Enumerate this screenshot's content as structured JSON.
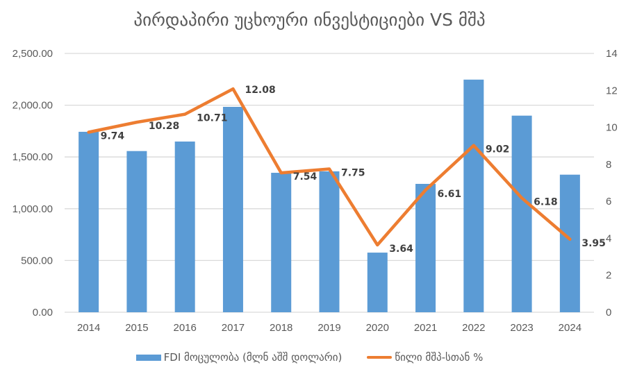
{
  "chart_data": {
    "type": "bar+line",
    "title": "პირდაპირი უცხოური ინვესტიციები VS მშპ",
    "categories": [
      "2014",
      "2015",
      "2016",
      "2017",
      "2018",
      "2019",
      "2020",
      "2021",
      "2022",
      "2023",
      "2024"
    ],
    "series": [
      {
        "name": "FDI მოცულობა (მლნ აშშ დოლარი)",
        "type": "bar",
        "axis": "left",
        "color": "#5b9bd5",
        "values": [
          1743,
          1557,
          1649,
          1984,
          1347,
          1361,
          576,
          1240,
          2247,
          1899,
          1329
        ]
      },
      {
        "name": "წილი მშპ-სთან %",
        "type": "line",
        "axis": "right",
        "color": "#ed7d31",
        "values": [
          9.74,
          10.28,
          10.71,
          12.08,
          7.54,
          7.75,
          3.64,
          6.61,
          9.02,
          6.18,
          3.95
        ],
        "labels": [
          "9.74",
          "10.28",
          "10.71",
          "12.08",
          "7.54",
          "7.75",
          "3.64",
          "6.61",
          "9.02",
          "6.18",
          "3.95"
        ]
      }
    ],
    "y_left": {
      "ylim": [
        0,
        2500
      ],
      "ticks": [
        "0.00",
        "500.00",
        "1,000.00",
        "1,500.00",
        "2,000.00",
        "2,500.00"
      ]
    },
    "y_right": {
      "ylim": [
        0,
        14
      ],
      "ticks": [
        "0",
        "2",
        "4",
        "6",
        "8",
        "10",
        "12",
        "14"
      ]
    },
    "grid": true,
    "legend_position": "bottom"
  }
}
